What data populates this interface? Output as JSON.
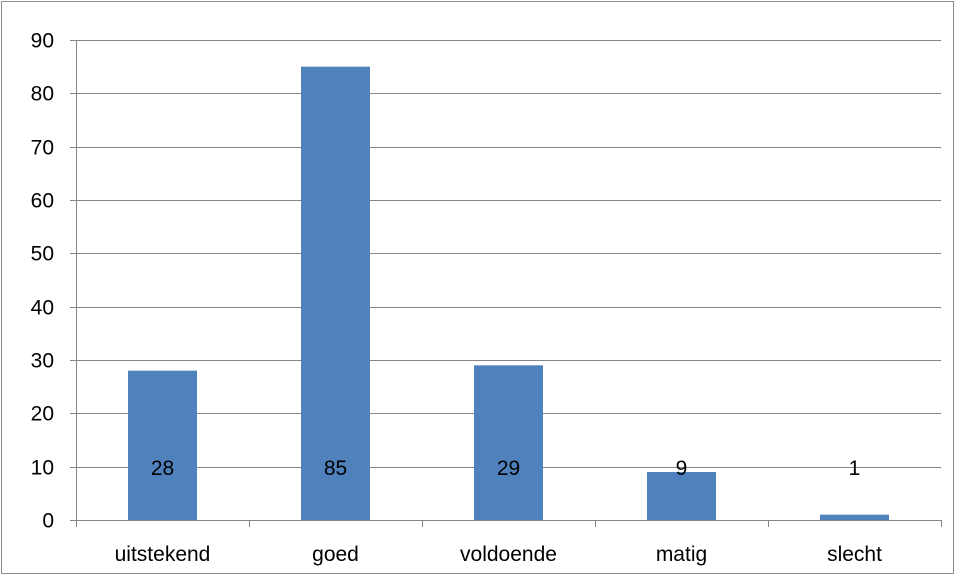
{
  "chart_data": {
    "type": "bar",
    "title": "",
    "xlabel": "",
    "ylabel": "",
    "categories": [
      "uitstekend",
      "goed",
      "voldoende",
      "matig",
      "slecht"
    ],
    "values": [
      28,
      85,
      29,
      9,
      1
    ],
    "data_labels": [
      "28",
      "85",
      "29",
      "9",
      "1"
    ],
    "ylim": [
      0,
      90
    ],
    "yticks": [
      0,
      10,
      20,
      30,
      40,
      50,
      60,
      70,
      80,
      90
    ],
    "ytick_labels": [
      "0",
      "10",
      "20",
      "30",
      "40",
      "50",
      "60",
      "70",
      "80",
      "90"
    ],
    "grid": true,
    "legend": "none",
    "colors": {
      "bar": "#4F81BD",
      "grid": "#868686",
      "axis": "#868686",
      "text": "#000000"
    }
  }
}
